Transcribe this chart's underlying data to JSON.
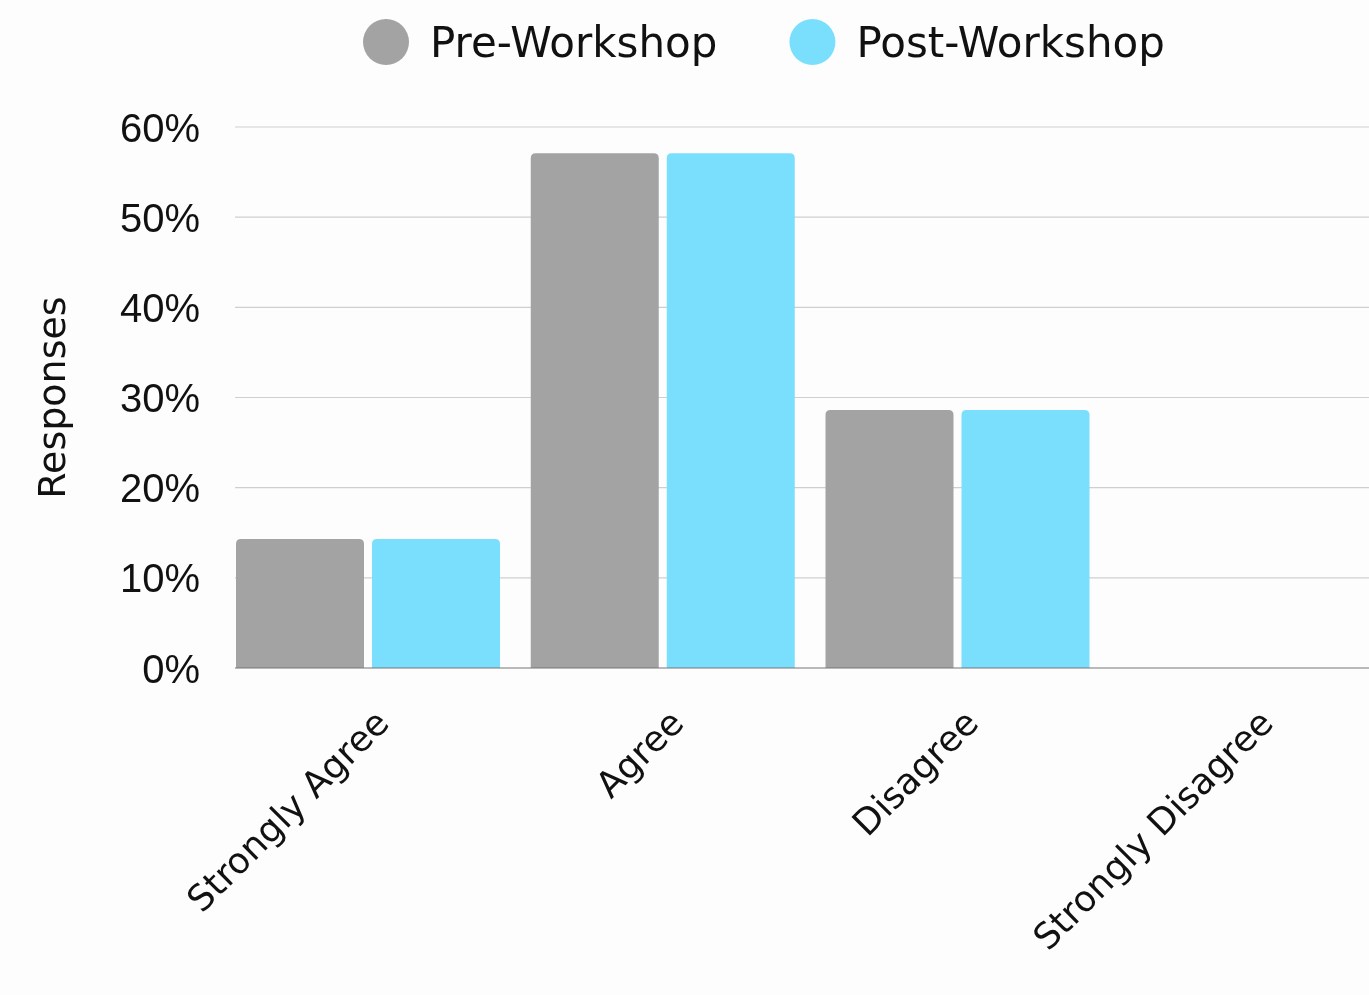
{
  "chart_data": {
    "type": "bar",
    "ylabel": "Responses",
    "categories": [
      "Strongly Agree",
      "Agree",
      "Disagree",
      "Strongly Disagree"
    ],
    "series": [
      {
        "name": "Pre-Workshop",
        "color": "#a3a3a3",
        "values": [
          14.3,
          57.1,
          28.6,
          0
        ]
      },
      {
        "name": "Post-Workshop",
        "color": "#79dffd",
        "values": [
          14.3,
          57.1,
          28.6,
          0
        ]
      }
    ],
    "ylim": [
      0,
      60
    ],
    "yticks": [
      {
        "value": 0,
        "label": "0%"
      },
      {
        "value": 10,
        "label": "10%"
      },
      {
        "value": 20,
        "label": "20%"
      },
      {
        "value": 30,
        "label": "30%"
      },
      {
        "value": 40,
        "label": "40%"
      },
      {
        "value": 50,
        "label": "50%"
      },
      {
        "value": 60,
        "label": "60%"
      }
    ],
    "grid": "y",
    "legend": "top"
  }
}
